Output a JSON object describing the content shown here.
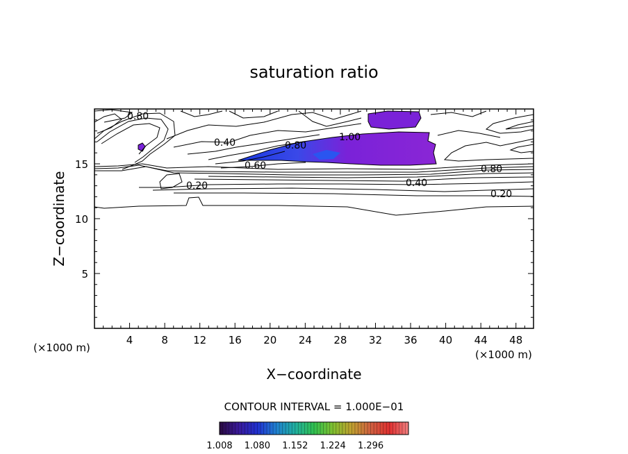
{
  "chart_data": {
    "type": "contour",
    "title": "saturation ratio",
    "xlabel": "X−coordinate",
    "ylabel": "Z−coordinate",
    "x_unit_left": "(×1000 m)",
    "x_unit_right": "(×1000 m)",
    "xlim": [
      0,
      50
    ],
    "ylim": [
      0,
      20
    ],
    "x_ticks": [
      "4",
      "8",
      "12",
      "16",
      "20",
      "24",
      "28",
      "32",
      "36",
      "40",
      "44",
      "48"
    ],
    "y_ticks": [
      "5",
      "10",
      "15"
    ],
    "contour_interval": "CONTOUR INTERVAL = 1.000E−01",
    "contour_labels": [
      "0.80",
      "0.40",
      "0.80",
      "1.00",
      "0.60",
      "0.20",
      "0.40",
      "0.80",
      "0.20"
    ],
    "colorbar": {
      "ticks": [
        "1.008",
        "1.080",
        "1.152",
        "1.224",
        "1.296"
      ],
      "range": [
        1.008,
        1.368
      ],
      "colors": [
        "#2a0a40",
        "#3a1a9a",
        "#2030d0",
        "#2080d0",
        "#20b0a0",
        "#30c050",
        "#80c030",
        "#c0a030",
        "#d06040",
        "#e03030",
        "#f08080"
      ]
    },
    "colors": {
      "supersaturated_fill": "#7a22d8",
      "deep_fill": "#3040e0"
    },
    "grid": false
  }
}
